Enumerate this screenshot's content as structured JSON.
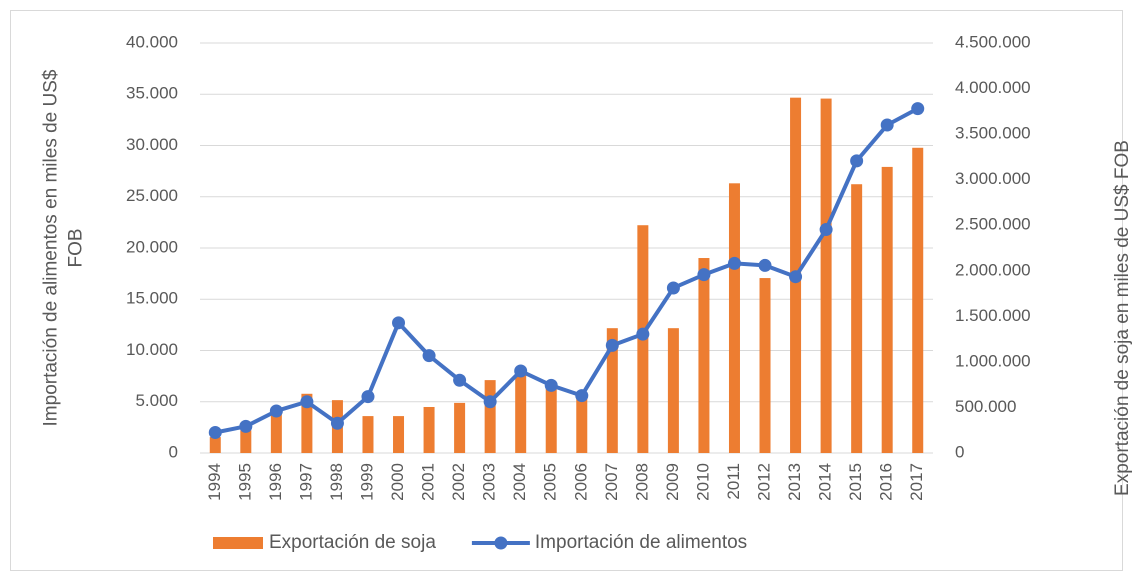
{
  "chart_data": {
    "type": "bar",
    "ylabel": "Importación de alimentos en miles de US$ FOB",
    "y2label": "Exportación de soja en miles de US$ FOB",
    "categories": [
      "1994",
      "1995",
      "1996",
      "1997",
      "1998",
      "1999",
      "2000",
      "2001",
      "2002",
      "2003",
      "2004",
      "2005",
      "2006",
      "2007",
      "2008",
      "2009",
      "2010",
      "2011",
      "2012",
      "2013",
      "2014",
      "2015",
      "2016",
      "2017"
    ],
    "series": [
      {
        "name": "Exportación de soja",
        "type": "bar",
        "axis": "y2",
        "color": "#ed7d31",
        "values": [
          175000,
          250000,
          440000,
          650000,
          580000,
          405000,
          405000,
          505000,
          550000,
          800000,
          890000,
          770000,
          640000,
          1370000,
          2500000,
          1370000,
          2140000,
          2960000,
          1920000,
          3900000,
          3890000,
          2950000,
          3140000,
          3350000
        ]
      },
      {
        "name": "Importación de alimentos",
        "type": "line",
        "axis": "y",
        "color": "#4472c4",
        "values": [
          2000,
          2600,
          4100,
          5000,
          2900,
          5500,
          12700,
          9500,
          7100,
          5000,
          8000,
          6600,
          5600,
          10500,
          11600,
          16100,
          17400,
          18500,
          18300,
          17200,
          21800,
          28500,
          32000,
          33600
        ]
      }
    ],
    "ylim": [
      0,
      40000
    ],
    "yticks": [
      0,
      {
        "value": 5000,
        "label": "5.000"
      },
      {
        "value": 10000,
        "label": "10.000"
      },
      {
        "value": 15000,
        "label": "15.000"
      },
      {
        "value": 20000,
        "label": "20.000"
      },
      {
        "value": 25000,
        "label": "25.000"
      },
      {
        "value": 30000,
        "label": "30.000"
      },
      {
        "value": 35000,
        "label": "35.000"
      },
      {
        "value": 40000,
        "label": "40.000"
      }
    ],
    "y2lim": [
      0,
      4500000
    ],
    "y2ticks": [
      0,
      {
        "value": 500000,
        "label": "500.000"
      },
      {
        "value": 1000000,
        "label": "1.000.000"
      },
      {
        "value": 1500000,
        "label": "1.500.000"
      },
      {
        "value": 2000000,
        "label": "2.000.000"
      },
      {
        "value": 2500000,
        "label": "2.500.000"
      },
      {
        "value": 3000000,
        "label": "3.000.000"
      },
      {
        "value": 3500000,
        "label": "3.500.000"
      },
      {
        "value": 4000000,
        "label": "4.000.000"
      },
      {
        "value": 4500000,
        "label": "4.500.000"
      }
    ],
    "grid": true,
    "legend": "bottom"
  }
}
